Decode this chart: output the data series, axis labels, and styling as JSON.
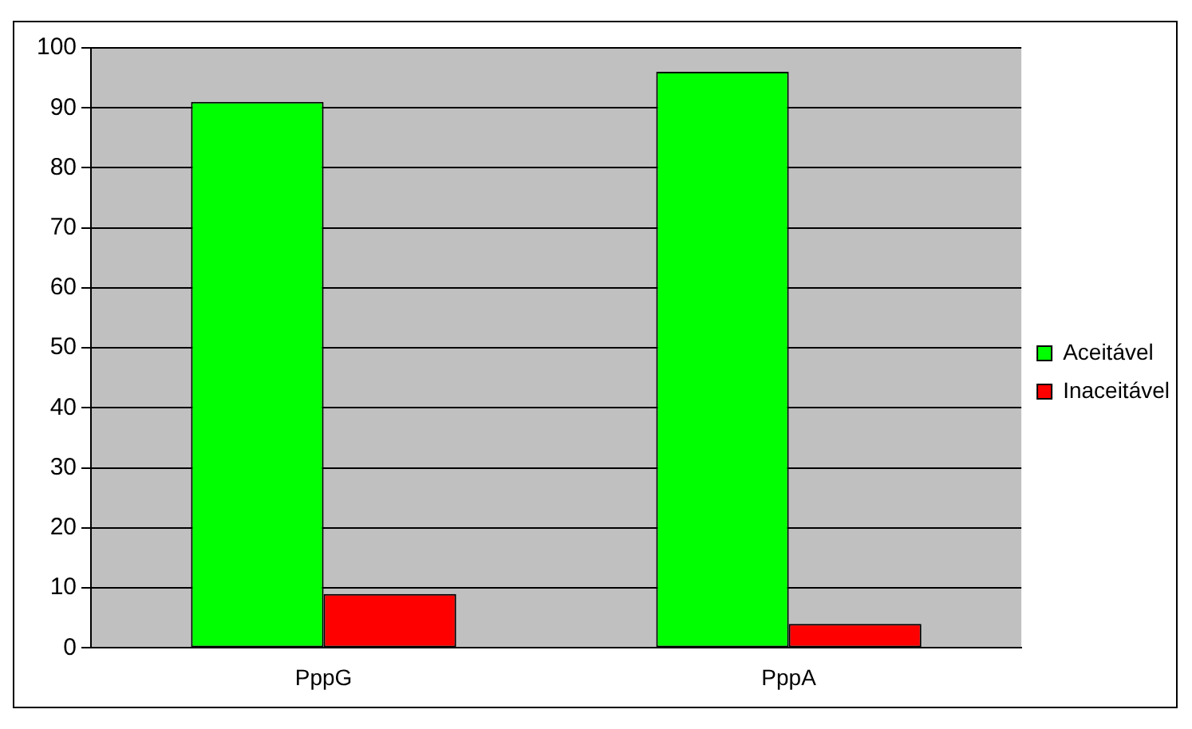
{
  "chart_data": {
    "type": "bar",
    "categories": [
      "PppG",
      "PppA"
    ],
    "series": [
      {
        "name": "Aceitável",
        "color": "#00ff00",
        "values": [
          91,
          96
        ]
      },
      {
        "name": "Inaceitável",
        "color": "#ff0000",
        "values": [
          9,
          4
        ]
      }
    ],
    "ylim": [
      0,
      100
    ],
    "yticks": [
      0,
      10,
      20,
      30,
      40,
      50,
      60,
      70,
      80,
      90,
      100
    ],
    "grid": "y",
    "legend": "right"
  }
}
